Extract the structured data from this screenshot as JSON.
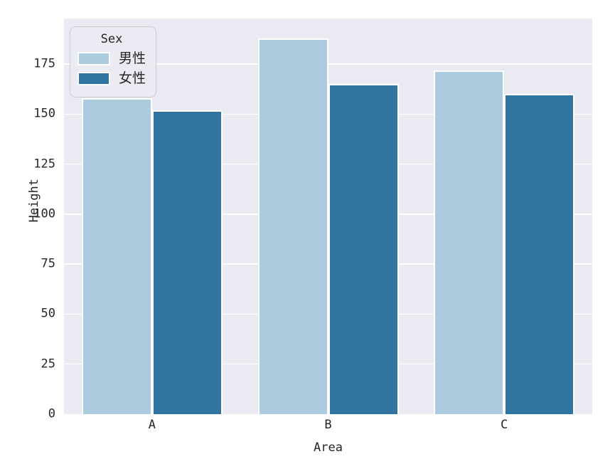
{
  "chart_data": {
    "type": "bar",
    "title": "",
    "xlabel": "Area",
    "ylabel": "Height",
    "categories": [
      "A",
      "B",
      "C"
    ],
    "series": [
      {
        "name": "男性",
        "color": "#adcbde",
        "values": [
          158,
          188,
          172
        ]
      },
      {
        "name": "女性",
        "color": "#3274a1",
        "values": [
          152,
          165,
          160
        ]
      }
    ],
    "legend": {
      "title": "Sex",
      "position": "upper left",
      "entries": [
        "男性",
        "女性"
      ]
    },
    "ylim": [
      0,
      197.8
    ],
    "yticks": [
      0,
      25,
      50,
      75,
      100,
      125,
      150,
      175
    ],
    "grid": true,
    "style": {
      "axes_background": "#eaeaf2",
      "grid_color": "#ffffff",
      "figure_background": "#ffffff",
      "text_color": "#262626",
      "bar_edge_color": "#ffffff"
    }
  }
}
